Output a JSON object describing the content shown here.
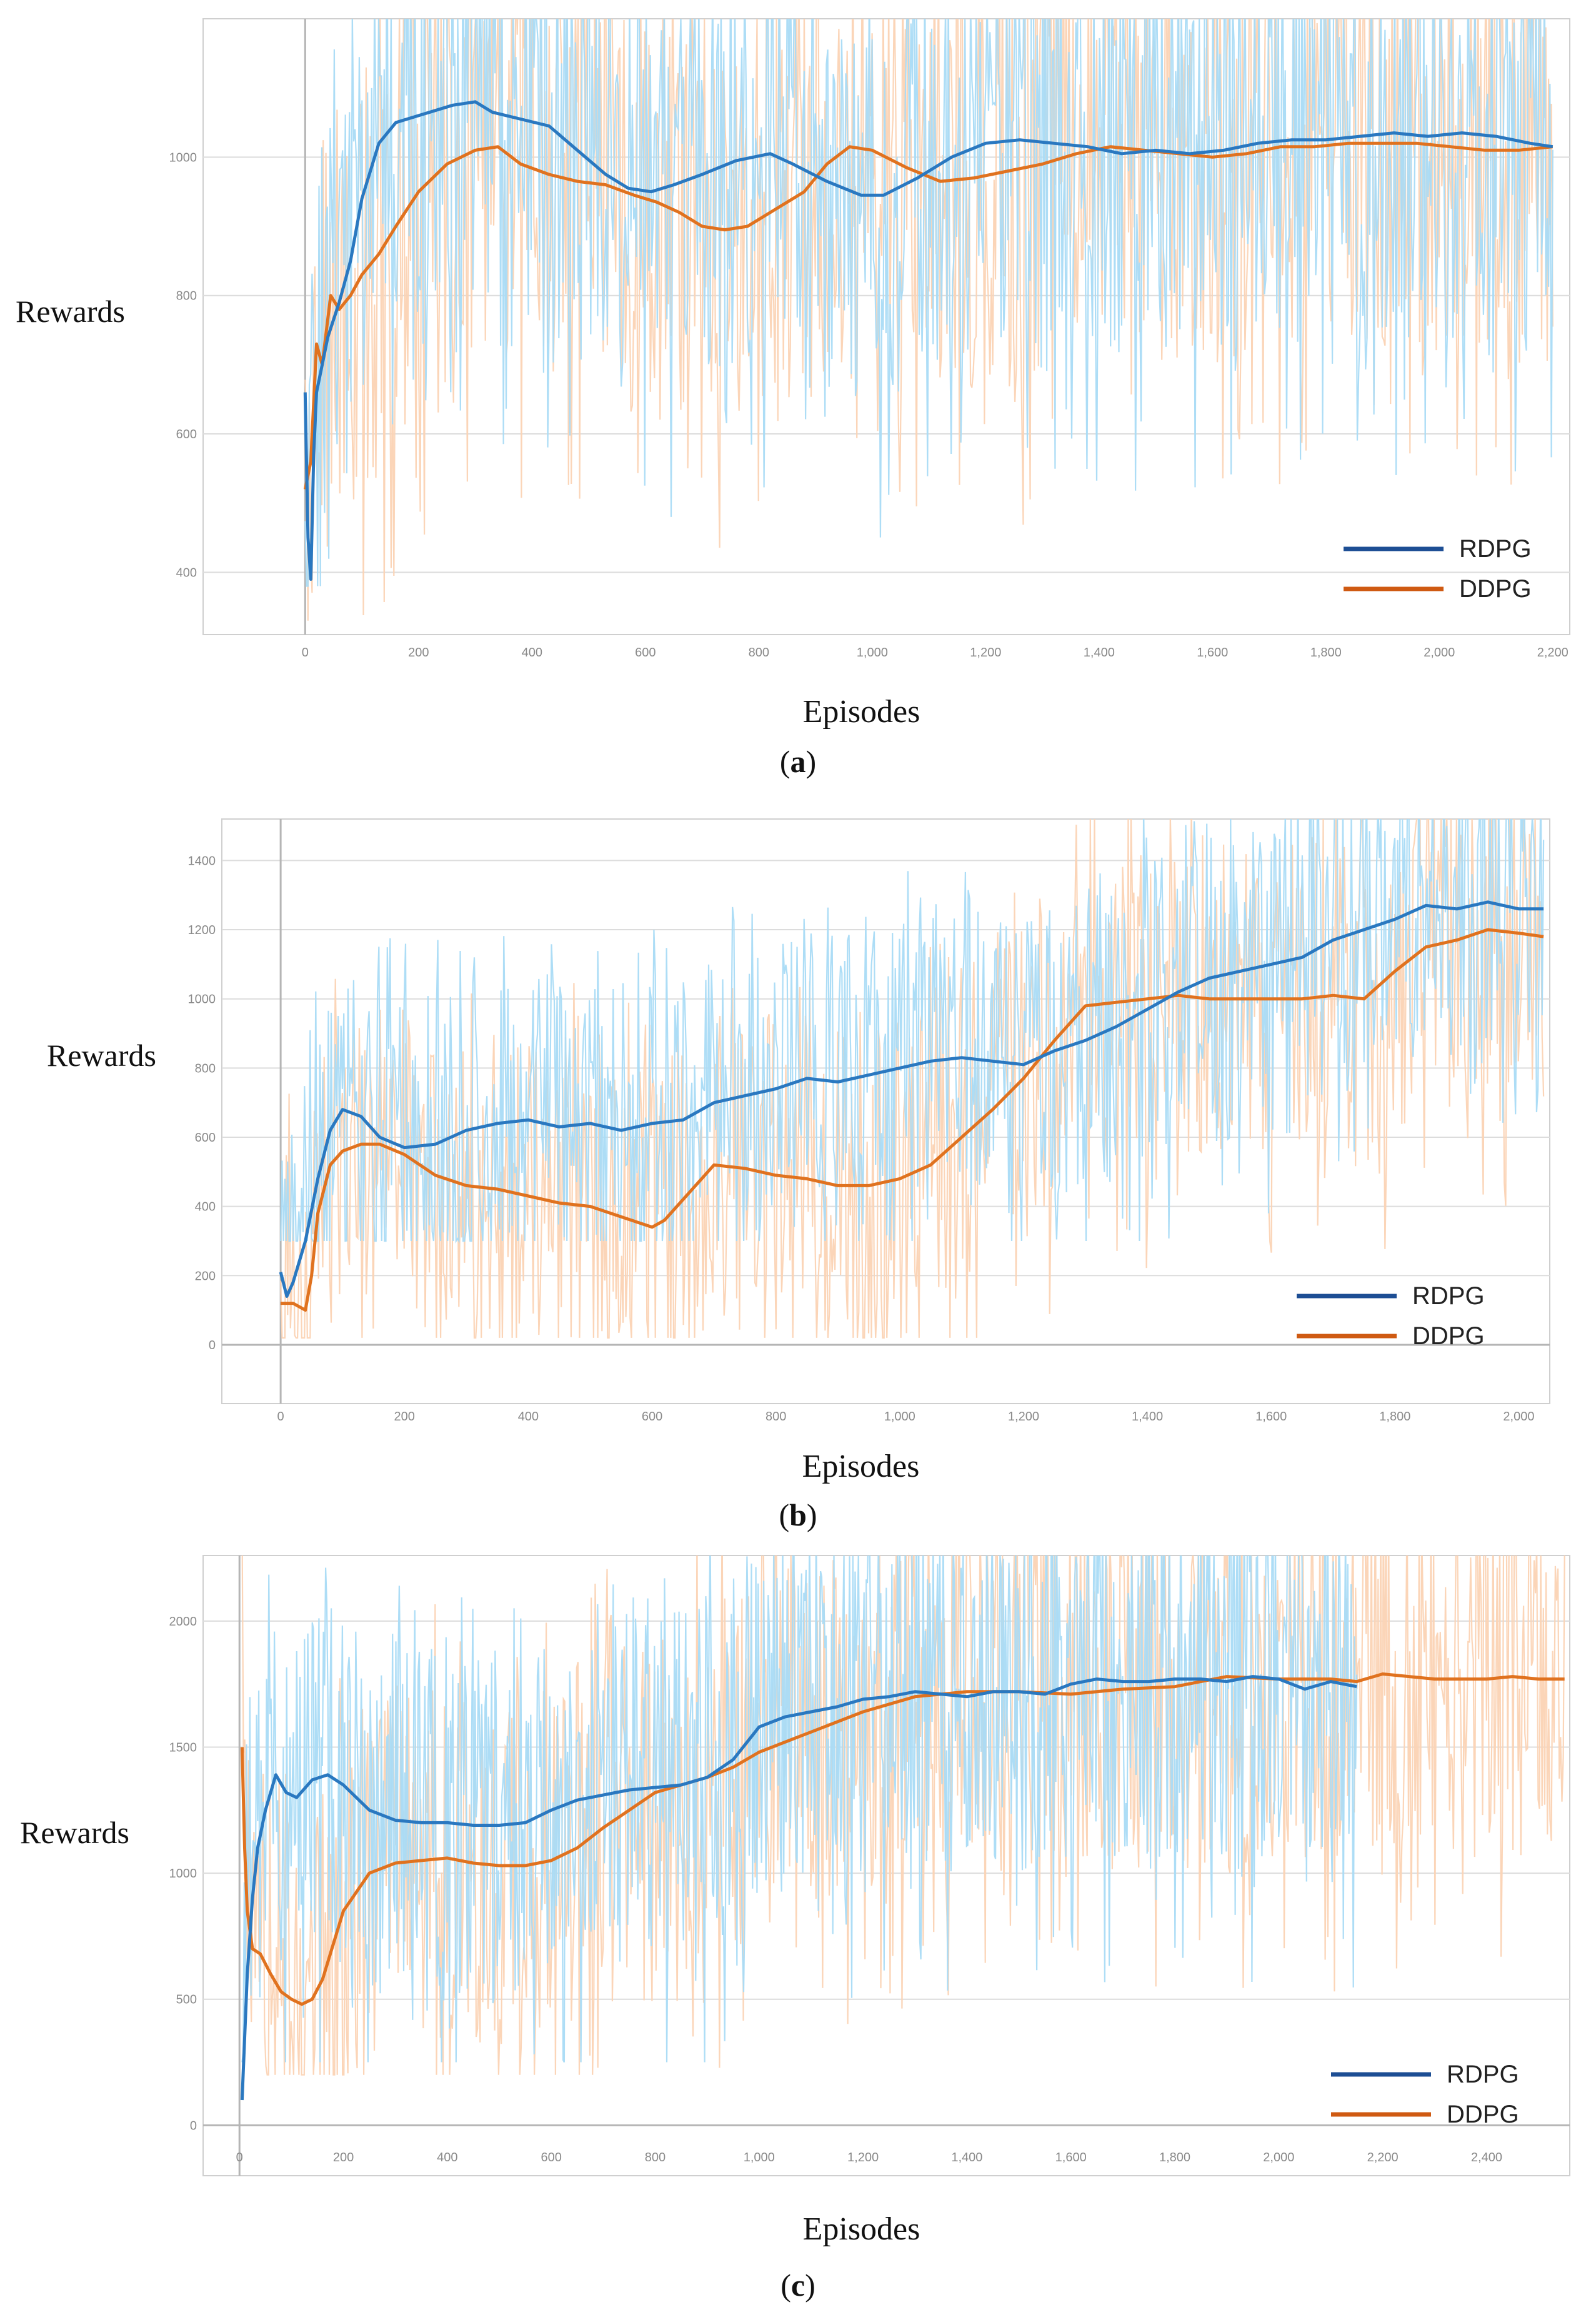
{
  "colors": {
    "rdpg_smooth": "#2a78c0",
    "rdpg_raw": "#a9dbf6",
    "ddpg_smooth": "#e0721f",
    "ddpg_raw": "#fbd3b4",
    "legend_rdpg": "#1d4e94",
    "legend_ddpg": "#cf5a12",
    "grid": "#dcdcdc",
    "tick_text": "#8a8a8a"
  },
  "chart_data": [
    {
      "type": "line",
      "panel_label": "a",
      "xlabel": "Episodes",
      "ylabel": "Rewards",
      "xlim": [
        -180,
        2230
      ],
      "ylim": [
        310,
        1200
      ],
      "xticks": [
        0,
        200,
        400,
        600,
        800,
        1000,
        1200,
        1400,
        1600,
        1800,
        2000,
        2200
      ],
      "xtick_labels": [
        "0",
        "200",
        "400",
        "600",
        "800",
        "1,000",
        "1,200",
        "1,400",
        "1,600",
        "1,800",
        "2,000",
        "2,200"
      ],
      "yticks": [
        400,
        600,
        800,
        1000
      ],
      "ytick_labels": [
        "400",
        "600",
        "800",
        "1000"
      ],
      "grid": true,
      "legend": "bottom-right",
      "series": [
        {
          "name": "RDPG",
          "color_key": "rdpg_smooth",
          "raw_color_key": "rdpg_raw",
          "x": [
            0,
            5,
            10,
            15,
            20,
            30,
            40,
            60,
            80,
            100,
            130,
            160,
            200,
            260,
            300,
            330,
            380,
            430,
            480,
            530,
            570,
            610,
            650,
            700,
            760,
            820,
            860,
            920,
            980,
            1020,
            1080,
            1140,
            1200,
            1260,
            1320,
            1380,
            1440,
            1500,
            1560,
            1620,
            1680,
            1740,
            1800,
            1860,
            1920,
            1980,
            2040,
            2100,
            2160,
            2200
          ],
          "y": [
            660,
            450,
            390,
            570,
            660,
            700,
            740,
            790,
            850,
            940,
            1020,
            1050,
            1060,
            1075,
            1080,
            1065,
            1055,
            1045,
            1010,
            975,
            955,
            950,
            960,
            975,
            995,
            1005,
            990,
            965,
            945,
            945,
            970,
            1000,
            1020,
            1025,
            1020,
            1015,
            1005,
            1010,
            1005,
            1010,
            1020,
            1025,
            1025,
            1030,
            1035,
            1030,
            1035,
            1030,
            1020,
            1015
          ],
          "raw_range": [
            380,
            1210
          ]
        },
        {
          "name": "DDPG",
          "color_key": "ddpg_smooth",
          "raw_color_key": "ddpg_raw",
          "x": [
            0,
            10,
            20,
            30,
            45,
            60,
            80,
            100,
            130,
            160,
            200,
            250,
            300,
            340,
            380,
            430,
            480,
            530,
            580,
            620,
            660,
            700,
            740,
            780,
            830,
            880,
            920,
            960,
            1000,
            1060,
            1120,
            1180,
            1240,
            1300,
            1360,
            1420,
            1480,
            1540,
            1600,
            1660,
            1720,
            1780,
            1840,
            1900,
            1960,
            2020,
            2080,
            2140,
            2200
          ],
          "y": [
            520,
            560,
            730,
            700,
            800,
            780,
            800,
            830,
            860,
            900,
            950,
            990,
            1010,
            1015,
            990,
            975,
            965,
            960,
            945,
            935,
            920,
            900,
            895,
            900,
            925,
            950,
            990,
            1015,
            1010,
            985,
            965,
            970,
            980,
            990,
            1005,
            1015,
            1010,
            1005,
            1000,
            1005,
            1015,
            1015,
            1020,
            1020,
            1020,
            1015,
            1010,
            1010,
            1015
          ],
          "raw_range": [
            320,
            1200
          ]
        }
      ]
    },
    {
      "type": "line",
      "panel_label": "b",
      "xlabel": "Episodes",
      "ylabel": "Rewards",
      "xlim": [
        -95,
        2050
      ],
      "ylim": [
        -170,
        1520
      ],
      "xticks": [
        0,
        200,
        400,
        600,
        800,
        1000,
        1200,
        1400,
        1600,
        1800,
        2000
      ],
      "xtick_labels": [
        "0",
        "200",
        "400",
        "600",
        "800",
        "1,000",
        "1,200",
        "1,400",
        "1,600",
        "1,800",
        "2,000"
      ],
      "yticks": [
        0,
        200,
        400,
        600,
        800,
        1000,
        1200,
        1400
      ],
      "ytick_labels": [
        "0",
        "200",
        "400",
        "600",
        "800",
        "1000",
        "1200",
        "1400"
      ],
      "grid": true,
      "legend": "bottom-right",
      "series": [
        {
          "name": "RDPG",
          "color_key": "rdpg_smooth",
          "raw_color_key": "rdpg_raw",
          "x": [
            0,
            10,
            20,
            40,
            60,
            80,
            100,
            130,
            160,
            200,
            250,
            300,
            350,
            400,
            450,
            500,
            550,
            600,
            650,
            700,
            750,
            800,
            850,
            900,
            950,
            1000,
            1050,
            1100,
            1150,
            1200,
            1250,
            1300,
            1350,
            1400,
            1450,
            1500,
            1550,
            1600,
            1650,
            1700,
            1750,
            1800,
            1850,
            1900,
            1950,
            2000,
            2040
          ],
          "y": [
            210,
            140,
            180,
            300,
            480,
            620,
            680,
            660,
            600,
            570,
            580,
            620,
            640,
            650,
            630,
            640,
            620,
            640,
            650,
            700,
            720,
            740,
            770,
            760,
            780,
            800,
            820,
            830,
            820,
            810,
            850,
            880,
            920,
            970,
            1020,
            1060,
            1080,
            1100,
            1120,
            1170,
            1200,
            1230,
            1270,
            1260,
            1280,
            1260,
            1260
          ],
          "raw_range": [
            300,
            1520
          ]
        },
        {
          "name": "DDPG",
          "color_key": "ddpg_smooth",
          "raw_color_key": "ddpg_raw",
          "x": [
            0,
            20,
            40,
            50,
            60,
            80,
            100,
            130,
            160,
            200,
            250,
            300,
            350,
            400,
            450,
            500,
            550,
            600,
            620,
            650,
            700,
            750,
            800,
            850,
            900,
            950,
            1000,
            1050,
            1100,
            1150,
            1200,
            1250,
            1300,
            1350,
            1400,
            1450,
            1500,
            1550,
            1600,
            1650,
            1700,
            1750,
            1800,
            1850,
            1900,
            1950,
            2000,
            2040
          ],
          "y": [
            120,
            120,
            100,
            200,
            380,
            520,
            560,
            580,
            580,
            550,
            490,
            460,
            450,
            430,
            410,
            400,
            370,
            340,
            360,
            420,
            520,
            510,
            490,
            480,
            460,
            460,
            480,
            520,
            600,
            680,
            770,
            880,
            980,
            990,
            1000,
            1010,
            1000,
            1000,
            1000,
            1000,
            1010,
            1000,
            1080,
            1150,
            1170,
            1200,
            1190,
            1180
          ],
          "raw_range": [
            20,
            1330
          ]
        }
      ]
    },
    {
      "type": "line",
      "panel_label": "c",
      "xlabel": "Episodes",
      "ylabel": "Rewards",
      "xlim": [
        -70,
        2560
      ],
      "ylim": [
        -200,
        2260
      ],
      "xticks": [
        0,
        200,
        400,
        600,
        800,
        1000,
        1200,
        1400,
        1600,
        1800,
        2000,
        2200,
        2400
      ],
      "xtick_labels": [
        "0",
        "200",
        "400",
        "600",
        "800",
        "1,000",
        "1,200",
        "1,400",
        "1,600",
        "1,800",
        "2,000",
        "2,200",
        "2,400"
      ],
      "yticks": [
        0,
        500,
        1000,
        1500,
        2000
      ],
      "ytick_labels": [
        "0",
        "500",
        "1000",
        "1500",
        "2000"
      ],
      "grid": true,
      "legend": "bottom-right",
      "series": [
        {
          "name": "RDPG",
          "color_key": "rdpg_smooth",
          "raw_color_key": "rdpg_raw",
          "x": [
            5,
            15,
            25,
            35,
            50,
            70,
            90,
            110,
            140,
            170,
            200,
            250,
            300,
            350,
            400,
            450,
            500,
            550,
            600,
            650,
            700,
            750,
            800,
            850,
            900,
            950,
            1000,
            1050,
            1100,
            1150,
            1200,
            1250,
            1300,
            1350,
            1400,
            1450,
            1500,
            1550,
            1600,
            1650,
            1700,
            1750,
            1800,
            1850,
            1900,
            1950,
            2000,
            2050,
            2100,
            2150
          ],
          "y": [
            100,
            600,
            900,
            1100,
            1250,
            1390,
            1320,
            1300,
            1370,
            1390,
            1350,
            1250,
            1210,
            1200,
            1200,
            1190,
            1190,
            1200,
            1250,
            1290,
            1310,
            1330,
            1340,
            1350,
            1380,
            1450,
            1580,
            1620,
            1640,
            1660,
            1690,
            1700,
            1720,
            1710,
            1700,
            1720,
            1720,
            1710,
            1750,
            1770,
            1760,
            1760,
            1770,
            1770,
            1760,
            1780,
            1770,
            1730,
            1760,
            1740
          ],
          "raw_range": [
            250,
            2260
          ]
        },
        {
          "name": "DDPG",
          "color_key": "ddpg_smooth",
          "raw_color_key": "ddpg_raw",
          "x": [
            5,
            10,
            15,
            25,
            40,
            60,
            80,
            100,
            120,
            140,
            160,
            200,
            250,
            300,
            350,
            400,
            450,
            500,
            550,
            600,
            650,
            700,
            750,
            800,
            850,
            900,
            950,
            1000,
            1100,
            1200,
            1300,
            1400,
            1500,
            1600,
            1700,
            1800,
            1900,
            2000,
            2100,
            2150,
            2200,
            2300,
            2400,
            2450,
            2500,
            2550
          ],
          "y": [
            1500,
            1100,
            850,
            700,
            680,
            600,
            530,
            500,
            480,
            500,
            580,
            850,
            1000,
            1040,
            1050,
            1060,
            1040,
            1030,
            1030,
            1050,
            1100,
            1180,
            1250,
            1320,
            1350,
            1380,
            1420,
            1480,
            1560,
            1640,
            1700,
            1720,
            1720,
            1710,
            1730,
            1740,
            1780,
            1770,
            1770,
            1760,
            1790,
            1770,
            1770,
            1780,
            1770,
            1770
          ],
          "raw_range": [
            200,
            2260
          ]
        }
      ]
    }
  ]
}
